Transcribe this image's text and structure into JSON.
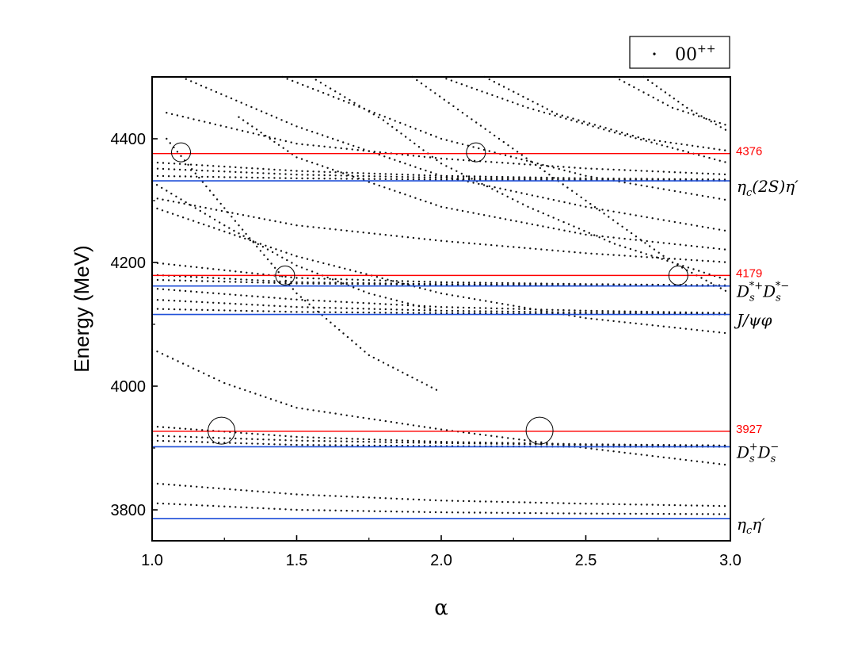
{
  "chart_data": {
    "type": "scatter",
    "xlabel": "α",
    "ylabel": "Energy (MeV)",
    "xlim": [
      1.0,
      3.0
    ],
    "ylim": [
      3750,
      4500
    ],
    "x_ticks": [
      1.0,
      1.5,
      2.0,
      2.5,
      3.0
    ],
    "x_tick_labels": [
      "1.0",
      "1.5",
      "2.0",
      "2.5",
      "3.0"
    ],
    "y_ticks": [
      3800,
      4000,
      4200,
      4400
    ],
    "y_tick_labels": [
      "3800",
      "4000",
      "4200",
      "4400"
    ],
    "grid": false,
    "legend": {
      "placement": "top-right-outside",
      "main": "00",
      "sup": "++"
    },
    "reference_lines": [
      {
        "label": "4376",
        "y": 4376,
        "color": "#ff0000"
      },
      {
        "label": "4179",
        "y": 4179,
        "color": "#ff0000"
      },
      {
        "label": "3927",
        "y": 3927,
        "color": "#ff0000"
      }
    ],
    "thresholds": [
      {
        "id": "etac2S-etap",
        "y": 4332,
        "color": "#1f4fd8",
        "parts": [
          {
            "t": "η"
          },
          {
            "t": "c",
            "sub": true
          },
          {
            "t": "(2S)η′"
          }
        ]
      },
      {
        "id": "dsstar-dsstar",
        "y": 4162,
        "color": "#1f4fd8",
        "parts": [
          {
            "t": "D"
          },
          {
            "t": "s",
            "sub": true
          },
          {
            "t": "*+",
            "sup": true
          },
          {
            "t": "D"
          },
          {
            "t": "s",
            "sub": true
          },
          {
            "t": "*−",
            "sup": true
          }
        ]
      },
      {
        "id": "jpsi-phi",
        "y": 4116,
        "color": "#1f4fd8",
        "parts": [
          {
            "t": "J/ψφ"
          }
        ]
      },
      {
        "id": "ds-ds",
        "y": 3902,
        "color": "#1f4fd8",
        "parts": [
          {
            "t": "D"
          },
          {
            "t": "s",
            "sub": true
          },
          {
            "t": "+",
            "sup": true
          },
          {
            "t": "D"
          },
          {
            "t": "s",
            "sub": true
          },
          {
            "t": "−",
            "sup": true
          }
        ]
      },
      {
        "id": "etac-etap",
        "y": 3786,
        "color": "#1f4fd8",
        "parts": [
          {
            "t": "η"
          },
          {
            "t": "c",
            "sub": true
          },
          {
            "t": "η′"
          }
        ]
      }
    ],
    "highlight_circles": [
      {
        "x": 1.1,
        "y": 4378,
        "r": 12
      },
      {
        "x": 2.12,
        "y": 4378,
        "r": 12
      },
      {
        "x": 1.46,
        "y": 4179,
        "r": 12
      },
      {
        "x": 2.82,
        "y": 4179,
        "r": 12
      },
      {
        "x": 1.24,
        "y": 3928,
        "r": 17
      },
      {
        "x": 2.34,
        "y": 3928,
        "r": 17
      }
    ],
    "series": [
      {
        "x": [
          1.0,
          1.5,
          2.0,
          2.5,
          3.0
        ],
        "y": [
          3811,
          3800,
          3796,
          3794,
          3793
        ]
      },
      {
        "x": [
          1.0,
          1.5,
          2.0,
          2.5,
          3.0
        ],
        "y": [
          3843,
          3825,
          3815,
          3810,
          3806
        ]
      },
      {
        "x": [
          1.0,
          1.5,
          2.0,
          2.5,
          3.0
        ],
        "y": [
          3912,
          3905,
          3903,
          3902,
          3902
        ]
      },
      {
        "x": [
          1.0,
          1.5,
          2.0,
          2.5,
          3.0
        ],
        "y": [
          3935,
          3918,
          3910,
          3906,
          3904
        ]
      },
      {
        "x": [
          1.0,
          1.5,
          2.0,
          2.5,
          3.0
        ],
        "y": [
          3920,
          3912,
          3908,
          3905,
          3903
        ]
      },
      {
        "x": [
          1.0,
          1.25,
          1.5,
          2.0,
          2.5,
          3.0
        ],
        "y": [
          4060,
          4005,
          3965,
          3930,
          3900,
          3872
        ]
      },
      {
        "x": [
          1.0,
          1.5,
          2.0,
          2.5,
          3.0
        ],
        "y": [
          4125,
          4120,
          4118,
          4117,
          4116
        ]
      },
      {
        "x": [
          1.0,
          1.5,
          2.0,
          2.5,
          3.0
        ],
        "y": [
          4140,
          4128,
          4122,
          4119,
          4117
        ]
      },
      {
        "x": [
          1.0,
          1.5,
          2.0,
          2.5,
          3.0
        ],
        "y": [
          4172,
          4166,
          4164,
          4163,
          4162
        ]
      },
      {
        "x": [
          1.0,
          1.5,
          2.0,
          2.5,
          3.0
        ],
        "y": [
          4180,
          4168,
          4165,
          4163,
          4162
        ]
      },
      {
        "x": [
          1.0,
          1.5,
          2.0,
          2.5,
          3.0
        ],
        "y": [
          4200,
          4175,
          4168,
          4165,
          4163
        ]
      },
      {
        "x": [
          1.0,
          1.5,
          2.0,
          2.5,
          3.0
        ],
        "y": [
          4158,
          4140,
          4128,
          4122,
          4118
        ]
      },
      {
        "x": [
          1.0,
          1.5,
          2.0,
          2.5,
          3.0
        ],
        "y": [
          4340,
          4336,
          4334,
          4333,
          4332
        ]
      },
      {
        "x": [
          1.0,
          1.5,
          2.0,
          2.5,
          3.0
        ],
        "y": [
          4352,
          4342,
          4337,
          4334,
          4333
        ]
      },
      {
        "x": [
          1.0,
          1.5,
          2.0,
          2.5,
          3.0
        ],
        "y": [
          4362,
          4348,
          4340,
          4336,
          4334
        ]
      },
      {
        "x": [
          1.05,
          1.5,
          2.0,
          2.5,
          3.0
        ],
        "y": [
          4442,
          4392,
          4368,
          4352,
          4342
        ]
      },
      {
        "x": [
          1.0,
          1.5,
          2.0,
          2.5,
          3.0
        ],
        "y": [
          4305,
          4260,
          4235,
          4215,
          4200
        ]
      },
      {
        "x": [
          1.0,
          1.5,
          2.0,
          2.5,
          3.0
        ],
        "y": [
          4290,
          4210,
          4150,
          4110,
          4085
        ]
      },
      {
        "x": [
          1.0,
          1.25,
          1.5,
          1.75,
          2.0
        ],
        "y": [
          4330,
          4260,
          4195,
          4150,
          4120
        ]
      },
      {
        "x": [
          1.05,
          1.3,
          1.5,
          1.75,
          2.0
        ],
        "y": [
          4400,
          4260,
          4150,
          4050,
          3990
        ]
      },
      {
        "x": [
          1.3,
          1.5,
          2.0,
          2.5,
          3.0
        ],
        "y": [
          4435,
          4370,
          4290,
          4245,
          4220
        ]
      },
      {
        "x": [
          1.1,
          1.5,
          2.0,
          2.5,
          3.0
        ],
        "y": [
          4500,
          4420,
          4340,
          4290,
          4250
        ]
      },
      {
        "x": [
          1.45,
          2.0,
          2.5,
          3.0
        ],
        "y": [
          4500,
          4400,
          4340,
          4300
        ]
      },
      {
        "x": [
          1.55,
          1.8,
          2.0,
          2.3,
          2.6,
          3.0
        ],
        "y": [
          4500,
          4430,
          4360,
          4290,
          4230,
          4170
        ]
      },
      {
        "x": [
          1.9,
          2.2,
          2.5,
          2.8,
          3.0
        ],
        "y": [
          4500,
          4400,
          4300,
          4200,
          4150
        ]
      },
      {
        "x": [
          2.0,
          2.3,
          2.6,
          3.0
        ],
        "y": [
          4500,
          4450,
          4410,
          4360
        ]
      },
      {
        "x": [
          2.15,
          2.4,
          2.7,
          3.0
        ],
        "y": [
          4500,
          4440,
          4400,
          4380
        ]
      },
      {
        "x": [
          2.6,
          2.8,
          3.0
        ],
        "y": [
          4500,
          4450,
          4420
        ]
      },
      {
        "x": [
          2.7,
          2.85,
          3.0
        ],
        "y": [
          4500,
          4450,
          4410
        ]
      }
    ]
  }
}
